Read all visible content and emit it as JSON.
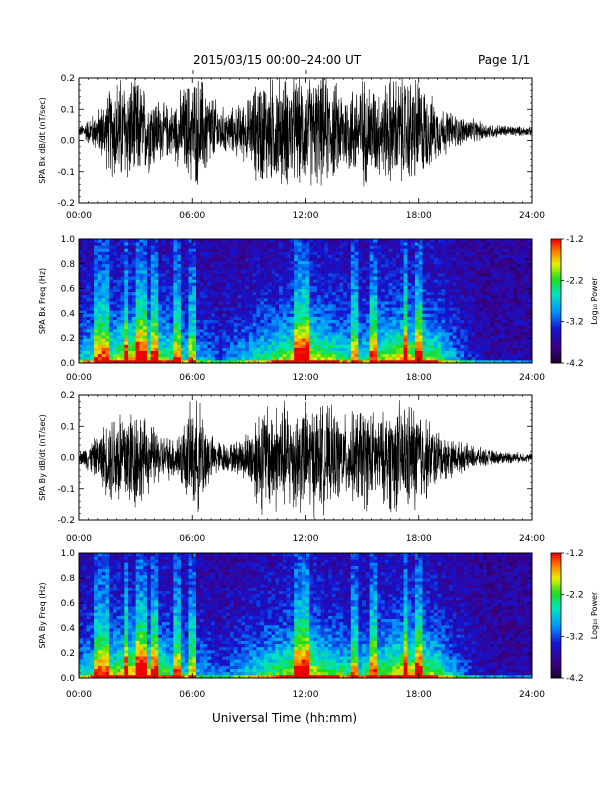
{
  "header": {
    "title": "2015/03/15   00:00–24:00 UT",
    "page": "Page 1/1"
  },
  "xlabel": "Universal Time (hh:mm)",
  "chart_data": [
    {
      "type": "line",
      "ylabel": "SPA Bx dB/dt (nT/sec)",
      "xlim": [
        "00:00",
        "24:00"
      ],
      "ylim": [
        -0.2,
        0.2
      ],
      "xticks": [
        "00:00",
        "06:00",
        "12:00",
        "18:00",
        "24:00"
      ],
      "yticks": [
        "-0.2",
        "-0.1",
        "0.0",
        "0.1",
        "0.2"
      ],
      "series": [
        {
          "x_hours": [
            0,
            1,
            1.5,
            2,
            2.5,
            3,
            3.5,
            4,
            4.5,
            5,
            5.5,
            6,
            6.5,
            7,
            7.5,
            8,
            8.5,
            9,
            9.5,
            10,
            10.5,
            11,
            11.5,
            12,
            12.5,
            13,
            13.5,
            14,
            14.5,
            15,
            15.5,
            16,
            16.5,
            17,
            17.5,
            18,
            18.5,
            19,
            19.5,
            20,
            21,
            22,
            23,
            24
          ],
          "baseline": 0.03,
          "amplitude": [
            0.015,
            0.08,
            0.14,
            0.2,
            0.2,
            0.2,
            0.16,
            0.14,
            0.1,
            0.1,
            0.16,
            0.2,
            0.2,
            0.14,
            0.09,
            0.08,
            0.1,
            0.12,
            0.2,
            0.2,
            0.2,
            0.2,
            0.2,
            0.2,
            0.2,
            0.2,
            0.18,
            0.16,
            0.17,
            0.2,
            0.18,
            0.16,
            0.2,
            0.2,
            0.2,
            0.2,
            0.14,
            0.1,
            0.08,
            0.06,
            0.04,
            0.025,
            0.02,
            0.015
          ]
        }
      ]
    },
    {
      "type": "heatmap",
      "ylabel": "SPA Bx Freq (Hz)",
      "xlim": [
        "00:00",
        "24:00"
      ],
      "ylim": [
        0.0,
        1.0
      ],
      "xticks": [
        "00:00",
        "06:00",
        "12:00",
        "18:00",
        "24:00"
      ],
      "yticks": [
        "0.0",
        "0.2",
        "0.4",
        "0.6",
        "0.8",
        "1.0"
      ],
      "colorbar": {
        "label": "Log₁₀ Power",
        "range": [
          -4.2,
          -1.2
        ],
        "ticks": [
          "-1.2",
          "-2.2",
          "-3.2",
          "-4.2"
        ]
      },
      "streak_hours": [
        1.0,
        1.4,
        2.5,
        3.1,
        3.4,
        4.0,
        5.2,
        6.0,
        11.6,
        12.0,
        14.6,
        15.6,
        17.3,
        18.0
      ],
      "activity_peak_hours": [
        3.0,
        12.0,
        17.3
      ]
    },
    {
      "type": "line",
      "ylabel": "SPA By dB/dt (nT/sec)",
      "xlim": [
        "00:00",
        "24:00"
      ],
      "ylim": [
        -0.2,
        0.2
      ],
      "xticks": [
        "00:00",
        "06:00",
        "12:00",
        "18:00",
        "24:00"
      ],
      "yticks": [
        "-0.2",
        "-0.1",
        "0.0",
        "0.1",
        "0.2"
      ],
      "series": [
        {
          "x_hours": [
            0,
            1,
            1.5,
            2,
            2.5,
            3,
            3.5,
            4,
            4.5,
            5,
            5.5,
            6,
            6.5,
            7,
            7.5,
            8,
            8.5,
            9,
            9.5,
            10,
            10.5,
            11,
            11.5,
            12,
            12.5,
            13,
            13.5,
            14,
            14.5,
            15,
            15.5,
            16,
            16.5,
            17,
            17.5,
            18,
            18.5,
            19,
            19.5,
            20,
            21,
            22,
            23,
            24
          ],
          "baseline": 0.0,
          "amplitude": [
            0.02,
            0.08,
            0.14,
            0.2,
            0.2,
            0.2,
            0.14,
            0.11,
            0.08,
            0.08,
            0.12,
            0.2,
            0.2,
            0.08,
            0.06,
            0.05,
            0.07,
            0.1,
            0.2,
            0.2,
            0.2,
            0.2,
            0.2,
            0.2,
            0.2,
            0.19,
            0.17,
            0.15,
            0.16,
            0.2,
            0.17,
            0.15,
            0.2,
            0.2,
            0.2,
            0.2,
            0.14,
            0.1,
            0.08,
            0.06,
            0.04,
            0.025,
            0.02,
            0.015
          ]
        }
      ]
    },
    {
      "type": "heatmap",
      "ylabel": "SPA By Freq (Hz)",
      "xlim": [
        "00:00",
        "24:00"
      ],
      "ylim": [
        0.0,
        1.0
      ],
      "xticks": [
        "00:00",
        "06:00",
        "12:00",
        "18:00",
        "24:00"
      ],
      "yticks": [
        "0.0",
        "0.2",
        "0.4",
        "0.6",
        "0.8",
        "1.0"
      ],
      "colorbar": {
        "label": "Log₁₀ Power",
        "range": [
          -4.2,
          -1.2
        ],
        "ticks": [
          "-1.2",
          "-2.2",
          "-3.2",
          "-4.2"
        ]
      },
      "streak_hours": [
        1.0,
        1.4,
        2.5,
        3.1,
        3.4,
        4.0,
        5.2,
        6.0,
        11.6,
        12.0,
        14.6,
        15.6,
        17.3,
        18.0
      ],
      "activity_peak_hours": [
        3.0,
        12.0,
        17.3
      ]
    }
  ]
}
